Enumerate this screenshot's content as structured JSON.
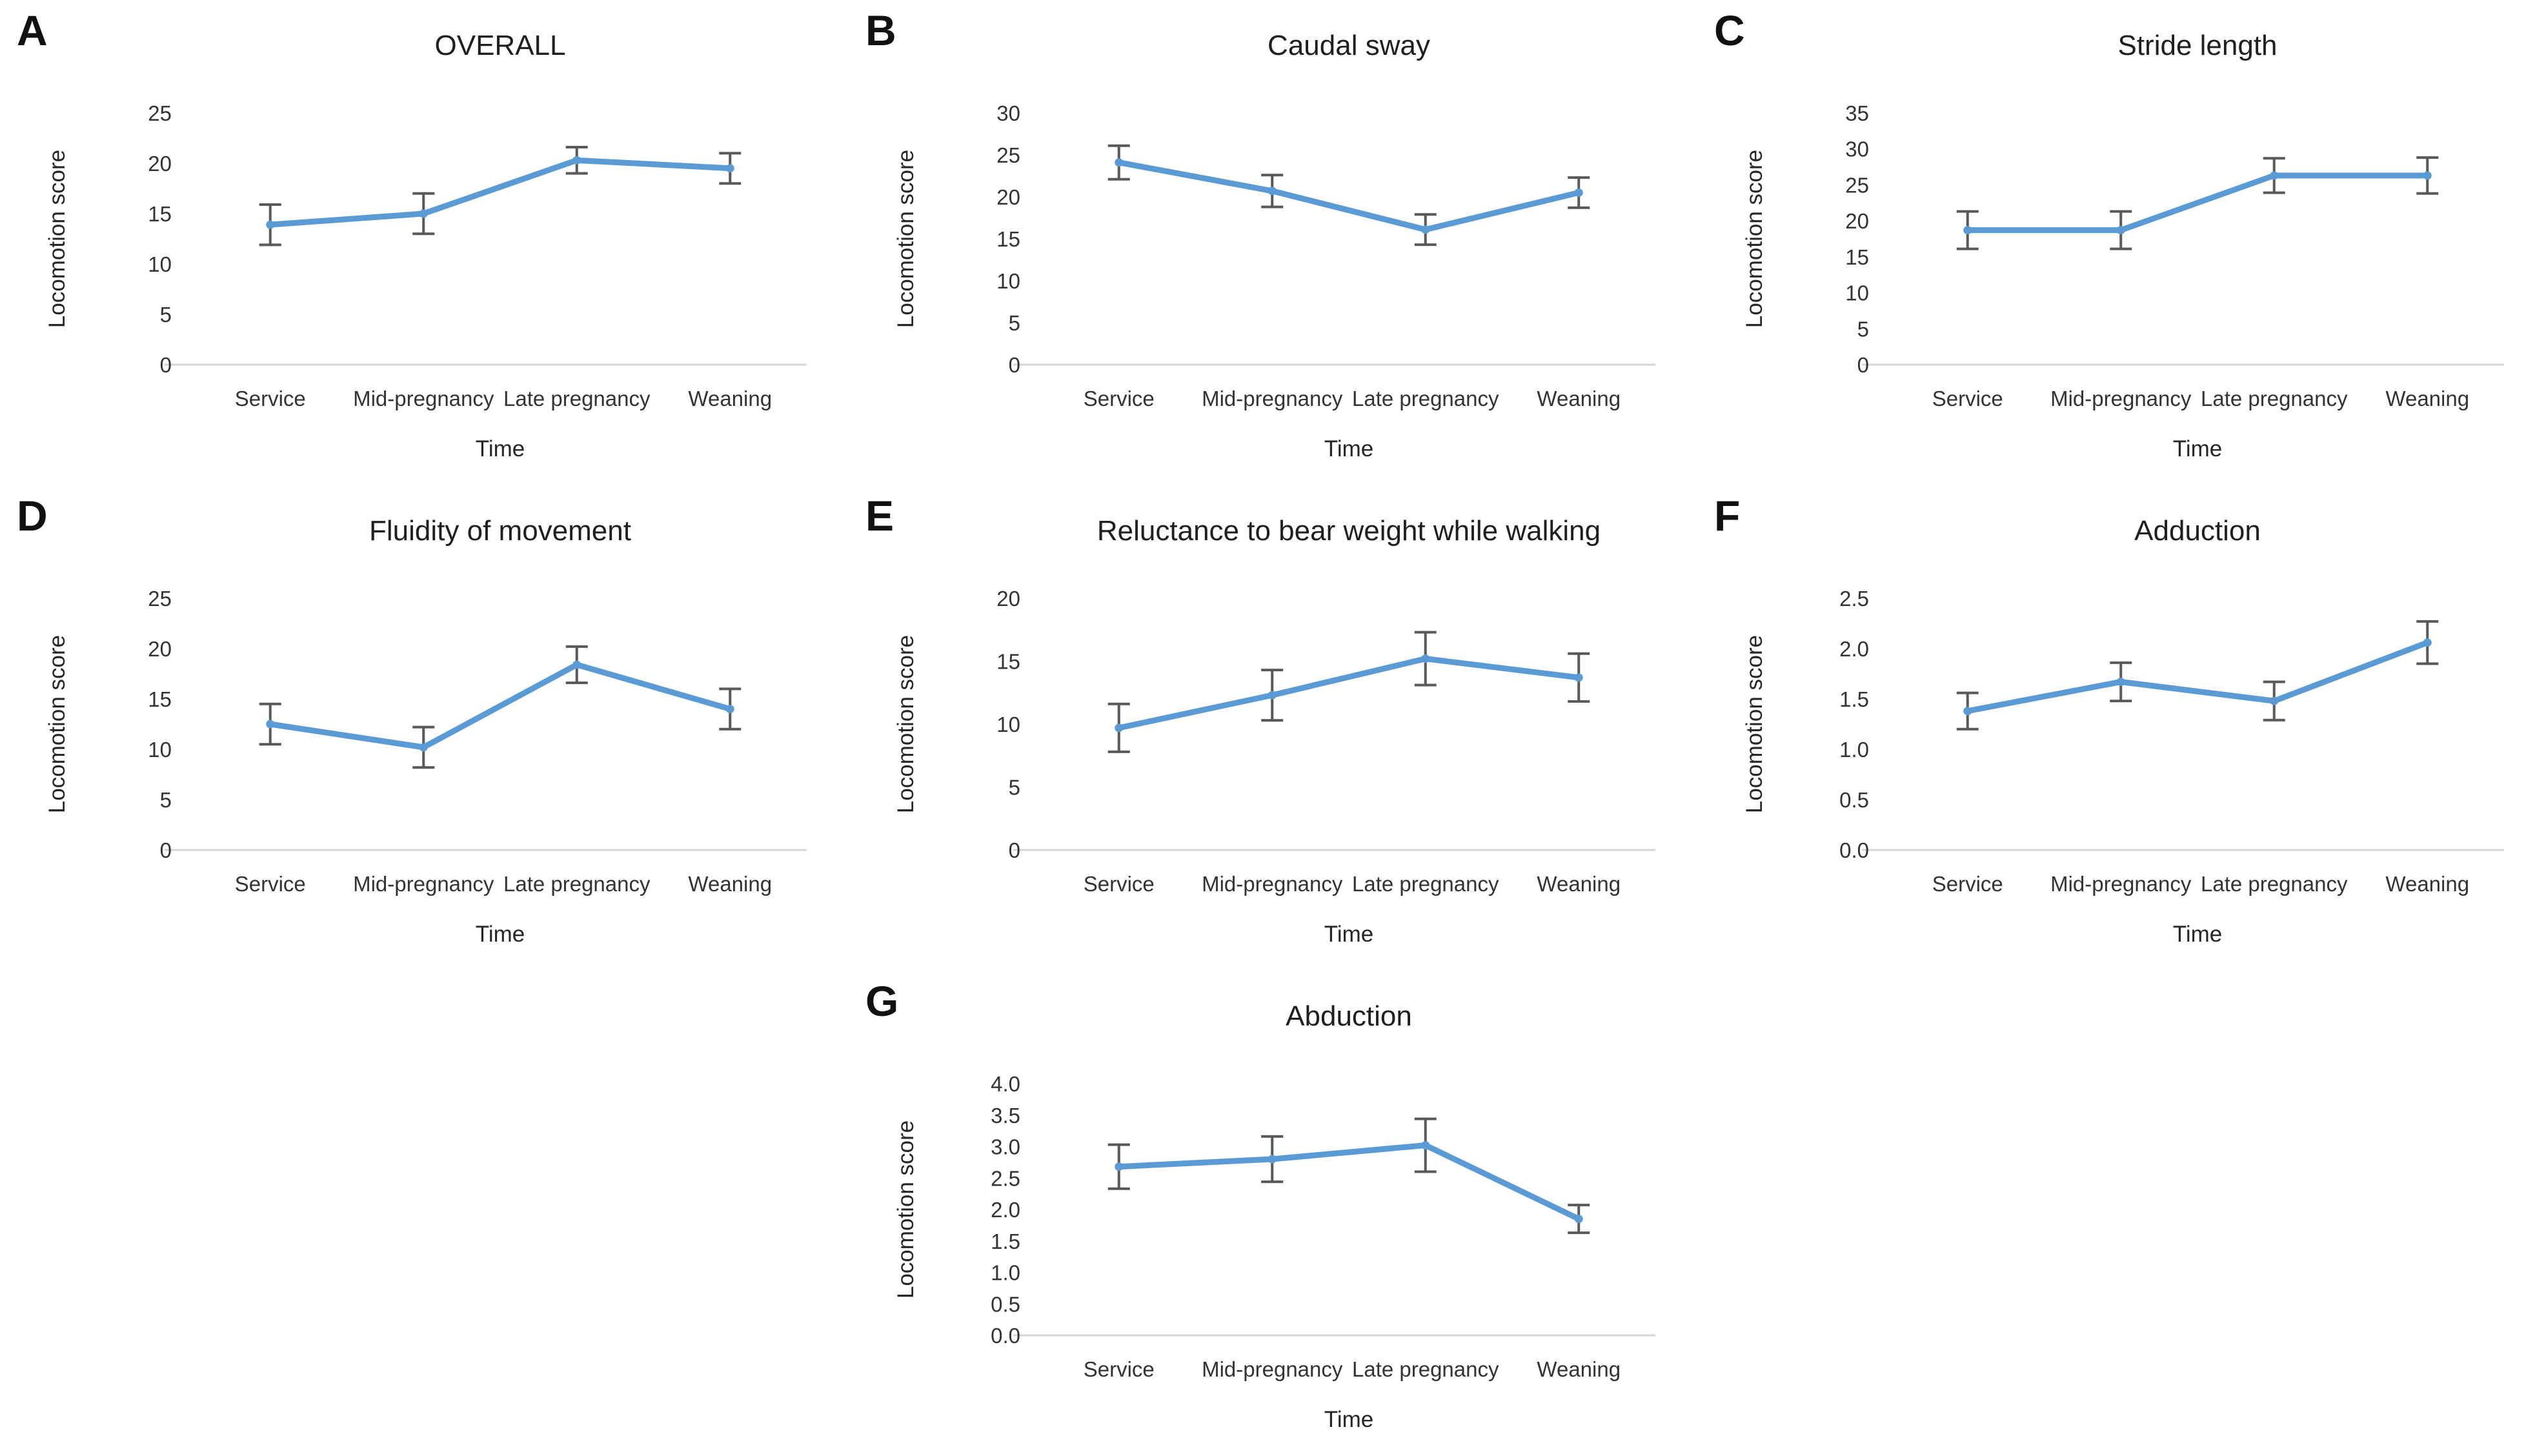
{
  "figure": {
    "background": "#ffffff",
    "line_color": "#5B9BD5",
    "error_bar_color": "#595959",
    "axis_line_color": "#d6d6d6",
    "title_color": "#1f1f1f",
    "tick_color": "#333333",
    "axis_title_color": "#262626"
  },
  "chart_data": [
    {
      "panel_letter": "A",
      "type": "line",
      "title": "OVERALL",
      "xlabel": "Time",
      "ylabel": "Locomotion score",
      "categories": [
        "Service",
        "Mid-pregnancy",
        "Late pregnancy",
        "Weaning"
      ],
      "values": [
        13.9,
        15.0,
        20.3,
        19.5
      ],
      "errors": [
        2.0,
        2.0,
        1.3,
        1.5
      ],
      "ylim": [
        0,
        25
      ],
      "yticks": [
        "0",
        "5",
        "10",
        "15",
        "20",
        "25"
      ],
      "grid": "off",
      "legend": "none"
    },
    {
      "panel_letter": "B",
      "type": "line",
      "title": "Caudal sway",
      "xlabel": "Time",
      "ylabel": "Locomotion score",
      "categories": [
        "Service",
        "Mid-pregnancy",
        "Late pregnancy",
        "Weaning"
      ],
      "values": [
        24.1,
        20.7,
        16.1,
        20.5
      ],
      "errors": [
        2.0,
        1.9,
        1.8,
        1.8
      ],
      "ylim": [
        0,
        30
      ],
      "yticks": [
        "0",
        "5",
        "10",
        "15",
        "20",
        "25",
        "30"
      ],
      "grid": "off",
      "legend": "none"
    },
    {
      "panel_letter": "C",
      "type": "line",
      "title": "Stride length",
      "xlabel": "Time",
      "ylabel": "Locomotion score",
      "categories": [
        "Service",
        "Mid-pregnancy",
        "Late pregnancy",
        "Weaning"
      ],
      "values": [
        18.7,
        18.7,
        26.3,
        26.3
      ],
      "errors": [
        2.6,
        2.6,
        2.4,
        2.5
      ],
      "ylim": [
        0,
        35
      ],
      "yticks": [
        "0",
        "5",
        "10",
        "15",
        "20",
        "25",
        "30",
        "35"
      ],
      "grid": "off",
      "legend": "none"
    },
    {
      "panel_letter": "D",
      "type": "line",
      "title": "Fluidity of movement",
      "xlabel": "Time",
      "ylabel": "Locomotion score",
      "categories": [
        "Service",
        "Mid-pregnancy",
        "Late pregnancy",
        "Weaning"
      ],
      "values": [
        12.5,
        10.2,
        18.4,
        14.0
      ],
      "errors": [
        2.0,
        2.0,
        1.8,
        2.0
      ],
      "ylim": [
        0,
        25
      ],
      "yticks": [
        "0",
        "5",
        "10",
        "15",
        "20",
        "25"
      ],
      "grid": "off",
      "legend": "none"
    },
    {
      "panel_letter": "E",
      "type": "line",
      "title": "Reluctance to bear weight while walking",
      "xlabel": "Time",
      "ylabel": "Locomotion score",
      "categories": [
        "Service",
        "Mid-pregnancy",
        "Late pregnancy",
        "Weaning"
      ],
      "values": [
        9.7,
        12.3,
        15.2,
        13.7
      ],
      "errors": [
        1.9,
        2.0,
        2.1,
        1.9
      ],
      "ylim": [
        0,
        20
      ],
      "yticks": [
        "0",
        "5",
        "10",
        "15",
        "20"
      ],
      "grid": "off",
      "legend": "none"
    },
    {
      "panel_letter": "F",
      "type": "line",
      "title": "Adduction",
      "xlabel": "Time",
      "ylabel": "Locomotion score",
      "categories": [
        "Service",
        "Mid-pregnancy",
        "Late pregnancy",
        "Weaning"
      ],
      "values": [
        1.38,
        1.67,
        1.48,
        2.06
      ],
      "errors": [
        0.18,
        0.19,
        0.19,
        0.21
      ],
      "ylim": [
        0,
        2.5
      ],
      "yticks": [
        "0.0",
        "0.5",
        "1.0",
        "1.5",
        "2.0",
        "2.5"
      ],
      "grid": "off",
      "legend": "none"
    },
    {
      "panel_letter": "G",
      "type": "line",
      "title": "Abduction",
      "xlabel": "Time",
      "ylabel": "Locomotion score",
      "categories": [
        "Service",
        "Mid-pregnancy",
        "Late pregnancy",
        "Weaning"
      ],
      "values": [
        2.68,
        2.8,
        3.02,
        1.85
      ],
      "errors": [
        0.35,
        0.36,
        0.42,
        0.22
      ],
      "ylim": [
        0,
        4.0
      ],
      "yticks": [
        "0.0",
        "0.5",
        "1.0",
        "1.5",
        "2.0",
        "2.5",
        "3.0",
        "3.5",
        "4.0"
      ],
      "grid": "off",
      "legend": "none"
    }
  ]
}
